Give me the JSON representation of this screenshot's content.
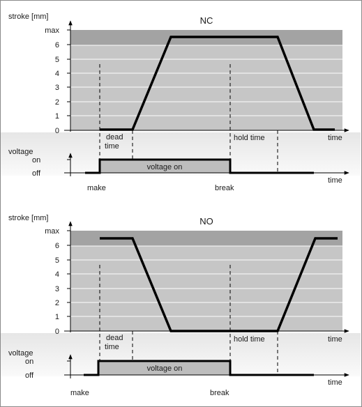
{
  "diagrams": [
    {
      "title": "NC",
      "y_axis_label": "stroke [mm]",
      "y_ticks": [
        "max",
        "6",
        "5",
        "4",
        "3",
        "2",
        "1",
        "0"
      ],
      "x_axis_label": "time",
      "annotations": {
        "dead_time": [
          "dead",
          "time"
        ],
        "hold_time": "hold time"
      },
      "voltage": {
        "label": "voltage",
        "on": "on",
        "off": "off",
        "pulse_label": "voltage on",
        "make": "make",
        "break": "break",
        "time": "time"
      }
    },
    {
      "title": "NO",
      "y_axis_label": "stroke [mm]",
      "y_ticks": [
        "max",
        "6",
        "5",
        "4",
        "3",
        "2",
        "1",
        "0"
      ],
      "x_axis_label": "time",
      "annotations": {
        "dead_time": [
          "dead",
          "time"
        ],
        "hold_time": "hold time"
      },
      "voltage": {
        "label": "voltage",
        "on": "on",
        "off": "off",
        "pulse_label": "voltage on",
        "make": "make",
        "break": "break",
        "time": "time"
      }
    }
  ],
  "colors": {
    "shade_dark": "#a3a3a3",
    "shade_light": "#c6c6c6",
    "pulse_fill": "#bdbdbd",
    "band_light": "#f2f2f2",
    "stroke": "#000000"
  }
}
